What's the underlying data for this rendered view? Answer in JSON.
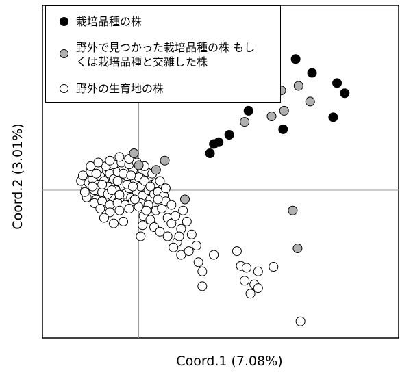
{
  "chart_data": {
    "type": "scatter",
    "xlabel": "Coord.1 (7.08%)",
    "ylabel": "Coord.2 (3.01%)",
    "xlim": [
      -1.0,
      2.7
    ],
    "ylim": [
      -1.6,
      2.0
    ],
    "reference_lines": {
      "x": 0,
      "y": 0
    },
    "legend_position": "top-left",
    "colors": {
      "cultivated": "#000000",
      "wild_cultivated": "#b0b0b0",
      "wild": "#ffffff",
      "stroke": "#000000"
    },
    "series": [
      {
        "name": "栽培品種の株",
        "fill": "#000000",
        "points": [
          [
            1.63,
            1.42
          ],
          [
            1.8,
            1.27
          ],
          [
            2.06,
            1.16
          ],
          [
            2.14,
            1.05
          ],
          [
            2.02,
            0.79
          ],
          [
            1.5,
            0.66
          ],
          [
            1.14,
            0.86
          ],
          [
            0.94,
            0.6
          ],
          [
            0.83,
            0.52
          ],
          [
            0.78,
            0.5
          ],
          [
            0.74,
            0.4
          ]
        ]
      },
      {
        "name": "野外で見つかった栽培品種の株 もしくは栽培品種と交雑した株",
        "fill": "#b0b0b0",
        "points": [
          [
            1.48,
            1.08
          ],
          [
            1.66,
            1.13
          ],
          [
            1.78,
            0.96
          ],
          [
            1.51,
            0.86
          ],
          [
            1.38,
            0.8
          ],
          [
            1.1,
            0.74
          ],
          [
            -0.05,
            0.4
          ],
          [
            0.0,
            0.27
          ],
          [
            0.27,
            0.32
          ],
          [
            0.18,
            0.22
          ],
          [
            0.48,
            -0.1
          ],
          [
            1.6,
            -0.22
          ],
          [
            1.65,
            -0.63
          ]
        ]
      },
      {
        "name": "野外の生育地の株",
        "fill": "#ffffff",
        "points": [
          [
            -0.6,
            0.1
          ],
          [
            -0.55,
            0.02
          ],
          [
            -0.52,
            0.08
          ],
          [
            -0.5,
            -0.05
          ],
          [
            -0.48,
            0.12
          ],
          [
            -0.46,
            0.0
          ],
          [
            -0.44,
            -0.1
          ],
          [
            -0.42,
            0.06
          ],
          [
            -0.4,
            0.15
          ],
          [
            -0.38,
            -0.02
          ],
          [
            -0.36,
            0.1
          ],
          [
            -0.34,
            -0.12
          ],
          [
            -0.32,
            0.04
          ],
          [
            -0.3,
            0.18
          ],
          [
            -0.28,
            -0.06
          ],
          [
            -0.26,
            0.12
          ],
          [
            -0.24,
            0.0
          ],
          [
            -0.22,
            0.2
          ],
          [
            -0.2,
            -0.1
          ],
          [
            -0.18,
            0.08
          ],
          [
            -0.16,
            0.25
          ],
          [
            -0.14,
            -0.04
          ],
          [
            -0.12,
            0.15
          ],
          [
            -0.1,
            0.02
          ],
          [
            -0.08,
            -0.08
          ],
          [
            -0.06,
            0.22
          ],
          [
            -0.04,
            0.1
          ],
          [
            -0.02,
            -0.02
          ],
          [
            0.0,
            0.14
          ],
          [
            0.02,
            0.04
          ],
          [
            0.04,
            -0.06
          ],
          [
            0.06,
            0.1
          ],
          [
            0.08,
            0.2
          ],
          [
            0.1,
            0.0
          ],
          [
            0.12,
            -0.1
          ],
          [
            0.14,
            0.06
          ],
          [
            0.16,
            -0.04
          ],
          [
            0.18,
            0.08
          ],
          [
            0.2,
            -0.02
          ],
          [
            0.22,
            0.1
          ],
          [
            -0.58,
            0.16
          ],
          [
            -0.54,
            -0.08
          ],
          [
            -0.5,
            0.2
          ],
          [
            -0.46,
            -0.14
          ],
          [
            -0.42,
            0.22
          ],
          [
            -0.38,
            -0.12
          ],
          [
            -0.34,
            0.26
          ],
          [
            -0.3,
            -0.16
          ],
          [
            -0.26,
            0.28
          ],
          [
            -0.22,
            -0.14
          ],
          [
            -0.18,
            0.3
          ],
          [
            -0.14,
            -0.16
          ],
          [
            -0.1,
            0.28
          ],
          [
            -0.06,
            -0.12
          ],
          [
            -0.02,
            0.3
          ],
          [
            0.02,
            -0.14
          ],
          [
            -0.5,
            0.26
          ],
          [
            -0.42,
            0.3
          ],
          [
            -0.3,
            0.32
          ],
          [
            -0.2,
            0.36
          ],
          [
            -0.1,
            0.34
          ],
          [
            -0.4,
            -0.2
          ],
          [
            -0.3,
            -0.24
          ],
          [
            -0.2,
            -0.22
          ],
          [
            -0.1,
            -0.2
          ],
          [
            0.0,
            -0.18
          ],
          [
            0.1,
            -0.16
          ],
          [
            -0.36,
            -0.3
          ],
          [
            -0.26,
            -0.36
          ],
          [
            -0.16,
            -0.34
          ],
          [
            0.05,
            -0.28
          ],
          [
            0.12,
            -0.32
          ],
          [
            0.18,
            -0.22
          ],
          [
            0.24,
            -0.2
          ],
          [
            0.26,
            -0.06
          ],
          [
            0.28,
            -0.12
          ],
          [
            0.16,
            -0.4
          ],
          [
            0.22,
            -0.45
          ],
          [
            0.3,
            -0.3
          ],
          [
            0.34,
            -0.36
          ],
          [
            0.38,
            -0.28
          ],
          [
            0.3,
            -0.5
          ],
          [
            0.44,
            -0.42
          ],
          [
            0.5,
            -0.34
          ],
          [
            0.4,
            -0.56
          ],
          [
            0.55,
            -0.48
          ],
          [
            0.36,
            -0.62
          ],
          [
            0.44,
            -0.7
          ],
          [
            0.52,
            -0.66
          ],
          [
            0.6,
            -0.6
          ],
          [
            0.62,
            -0.78
          ],
          [
            0.66,
            -0.88
          ],
          [
            0.66,
            -1.04
          ],
          [
            0.78,
            -0.7
          ],
          [
            1.02,
            -0.66
          ],
          [
            1.06,
            -0.82
          ],
          [
            1.12,
            -0.84
          ],
          [
            1.24,
            -0.88
          ],
          [
            1.1,
            -0.98
          ],
          [
            1.2,
            -1.02
          ],
          [
            1.24,
            -1.06
          ],
          [
            1.16,
            -1.12
          ],
          [
            1.4,
            -0.83
          ],
          [
            1.68,
            -1.42
          ],
          [
            0.02,
            -0.5
          ],
          [
            -0.2,
            -0.05
          ],
          [
            -0.48,
            0.04
          ],
          [
            -0.44,
            0.18
          ],
          [
            -0.32,
            -0.04
          ],
          [
            -0.12,
            0.06
          ],
          [
            0.06,
            0.26
          ],
          [
            -0.04,
            -0.1
          ],
          [
            0.14,
            0.18
          ],
          [
            -0.22,
            0.1
          ],
          [
            0.08,
            -0.22
          ],
          [
            -0.56,
            -0.02
          ],
          [
            0.2,
            -0.1
          ],
          [
            0.34,
            -0.16
          ],
          [
            0.46,
            -0.22
          ],
          [
            0.12,
            0.04
          ],
          [
            -0.06,
            0.04
          ],
          [
            -0.38,
            0.06
          ],
          [
            0.28,
            0.02
          ],
          [
            0.42,
            -0.5
          ],
          [
            0.04,
            -0.38
          ],
          [
            -0.16,
            0.18
          ],
          [
            -0.28,
            0.0
          ],
          [
            -0.08,
            0.16
          ]
        ]
      }
    ]
  }
}
